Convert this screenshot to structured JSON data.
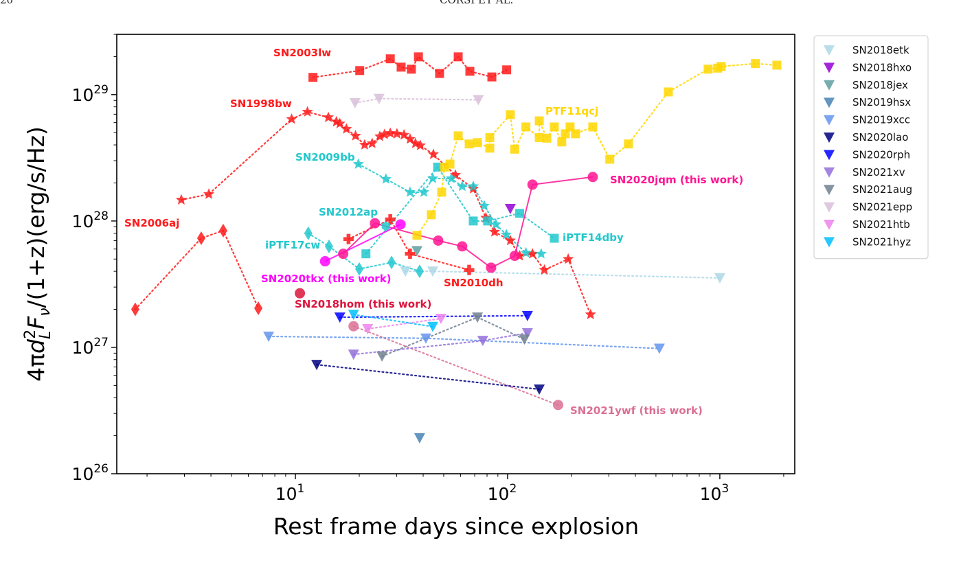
{
  "page_header": {
    "page_number": "20",
    "running_title": "CORSI ET AL."
  },
  "chart_data": {
    "type": "scatter",
    "xlabel": "Rest frame days since explosion",
    "ylabel_parts": [
      "4π",
      "d",
      "L",
      "2",
      "F",
      "ν",
      "/(1+z)(erg/s/Hz)"
    ],
    "xscale": "log",
    "yscale": "log",
    "xlim": [
      1.44,
      2255
    ],
    "ylim": [
      1e+26,
      3e+29
    ],
    "xticks": [
      {
        "base": "10",
        "exp": "1",
        "value": 10
      },
      {
        "base": "10",
        "exp": "2",
        "value": 100
      },
      {
        "base": "10",
        "exp": "3",
        "value": 1000
      }
    ],
    "yticks": [
      {
        "base": "10",
        "exp": "26",
        "value": 1e+26
      },
      {
        "base": "10",
        "exp": "27",
        "value": 1e+27
      },
      {
        "base": "10",
        "exp": "28",
        "value": 1e+28
      },
      {
        "base": "10",
        "exp": "29",
        "value": 1e+29
      }
    ],
    "grid": false,
    "legend_placement": "outside-top-right",
    "series": [
      {
        "name": "SN2006aj",
        "label": "SN2006aj",
        "color": "#ff1a1a",
        "marker": "diamond",
        "line": "dotted",
        "x": [
          1.76,
          3.6,
          4.57,
          6.69
        ],
        "y": [
          2e+27,
          7.3e+27,
          8.4e+27,
          2.04e+27
        ]
      },
      {
        "name": "SN2003lw",
        "label": "SN2003lw",
        "color": "#ff1a1a",
        "marker": "square",
        "line": "dotted",
        "x": [
          12.1,
          20.1,
          28,
          31.5,
          35.2,
          38,
          47.8,
          58.5,
          66.4,
          84.3,
          99
        ],
        "y": [
          1.37e+29,
          1.55e+29,
          1.92e+29,
          1.65e+29,
          1.59e+29,
          1.99e+29,
          1.47e+29,
          1.99e+29,
          1.53e+29,
          1.38e+29,
          1.57e+29
        ]
      },
      {
        "name": "SN1998bw",
        "label": "SN1998bw",
        "color": "#ff1a1a",
        "marker": "star",
        "line": "dotted",
        "x": [
          2.9,
          3.91,
          9.6,
          11.4,
          14.3,
          15.6,
          16.2,
          17.4,
          19.2,
          21.2,
          23.0,
          25.0,
          26.3,
          28.0,
          30.1,
          32.5,
          34.7,
          36.8,
          38.8,
          44.7,
          56.8,
          68.9,
          79.0,
          86.8,
          103,
          114,
          131,
          149,
          193,
          246
        ],
        "y": [
          1.47e+28,
          1.63e+28,
          6.4e+28,
          7.3e+28,
          6.6e+28,
          6.1e+28,
          5.9e+28,
          5.35e+28,
          4.72e+28,
          4e+28,
          4.11e+28,
          4.67e+28,
          4.84e+28,
          4.95e+28,
          4.9e+28,
          4.8e+28,
          4.45e+28,
          4.11e+28,
          3.96e+28,
          3.37e+28,
          2.31e+28,
          1.8e+28,
          1.06e+28,
          8.2e+27,
          7e+27,
          5.3e+27,
          5.5e+27,
          4.1e+27,
          5e+27,
          1.82e+27
        ]
      },
      {
        "name": "SN2010dh",
        "label": "SN2010dh",
        "color": "#ff1a1a",
        "marker": "plus",
        "line": "dotted",
        "x": [
          17.8,
          28.0,
          34.7,
          65.9
        ],
        "y": [
          7.2e+27,
          1.03e+28,
          5.5e+27,
          4.1e+27
        ]
      },
      {
        "name": "SN2009bb",
        "label": "SN2009bb",
        "color": "#22c8cc",
        "marker": "star",
        "line": "dotted",
        "x": [
          19.8,
          26.7,
          34.7,
          40.3,
          44.4,
          54.3,
          61.1,
          68.9,
          77.6,
          88.1,
          98.6,
          122,
          144
        ],
        "y": [
          2.82e+28,
          2.15e+28,
          1.69e+28,
          1.69e+28,
          2.17e+28,
          2.17e+28,
          1.88e+28,
          1.88e+28,
          1.32e+28,
          9.4e+27,
          7.8e+27,
          5.6e+27,
          5.5e+27
        ]
      },
      {
        "name": "iPTF14dby",
        "label": "iPTF14dby",
        "color": "#22c8cc",
        "marker": "square",
        "line": "dotted",
        "x": [
          21.5,
          46.8,
          68.9,
          80.5,
          114,
          166
        ],
        "y": [
          5.5e+27,
          2.67e+28,
          1e+28,
          1e+28,
          1.15e+28,
          7.3e+27
        ]
      },
      {
        "name": "SN2012ap",
        "label": "SN2012ap",
        "color": "#22c8cc",
        "marker": "hexagon",
        "line": "dotted",
        "x": [
          26.7
        ],
        "y": [
          9.1e+27
        ]
      },
      {
        "name": "iPTF17cw",
        "label": "iPTF17cw",
        "color": "#22c8cc",
        "marker": "diamond",
        "line": "dotted",
        "x": [
          11.5,
          14.4,
          20.0,
          28.4,
          38.5
        ],
        "y": [
          8e+27,
          6.3e+27,
          4.17e+27,
          4.7e+27,
          4e+27
        ]
      },
      {
        "name": "PTF11qcj",
        "label": "PTF11qcj",
        "color": "#ffd700",
        "marker": "square",
        "line": "dotted",
        "x": [
          37.4,
          43.7,
          48.9,
          50.4,
          53.5,
          58.5,
          65.9,
          72.1,
          82.4,
          82.4,
          103,
          108,
          122,
          141,
          141,
          153,
          166,
          180,
          187,
          197,
          209,
          252,
          303,
          371,
          572,
          881,
          977,
          1015,
          1472,
          1857
        ],
        "y": [
          7.7e+27,
          1.12e+28,
          1.69e+28,
          2.67e+28,
          2.82e+28,
          4.72e+28,
          4.07e+28,
          4.17e+28,
          3.77e+28,
          4.57e+28,
          6.95e+28,
          3.7e+28,
          5.55e+28,
          4.57e+28,
          6.2e+28,
          4.52e+28,
          5.55e+28,
          4.22e+28,
          4.9e+28,
          5.55e+28,
          4.9e+28,
          5.55e+28,
          3.08e+28,
          4.07e+28,
          1.05e+29,
          1.59e+29,
          1.62e+29,
          1.67e+29,
          1.76e+29,
          1.71e+29
        ]
      },
      {
        "name": "SN2020jqm",
        "label": "SN2020jqm (this work)",
        "color": "#ff1493",
        "marker": "circle",
        "line": "solid",
        "x": [
          16.8,
          23.7,
          47.1,
          61.1,
          83.6,
          108,
          131,
          252
        ],
        "y": [
          5.5e+27,
          9.6e+27,
          7e+27,
          6.3e+27,
          4.27e+27,
          5.3e+27,
          1.94e+28,
          2.23e+28
        ]
      },
      {
        "name": "SN2020tkx",
        "label": "SN2020tkx (this work)",
        "color": "#ff00ff",
        "marker": "circle",
        "line": "solid",
        "x": [
          13.8,
          31.3
        ],
        "y": [
          4.8e+27,
          9.4e+27
        ]
      },
      {
        "name": "SN2018hom",
        "label": "SN2018hom (this work)",
        "color": "#dc143c",
        "marker": "circle",
        "line": "none",
        "x": [
          10.5
        ],
        "y": [
          2.68e+27
        ]
      },
      {
        "name": "SN2021ywf",
        "label": "SN2021ywf (this work)",
        "color": "#db7093",
        "marker": "circle",
        "line": "dotted",
        "x": [
          18.8,
          173
        ],
        "y": [
          1.47e+27,
          3.5e+26
        ]
      },
      {
        "name": "SN2018etk",
        "legend": true,
        "color": "#add8e6",
        "marker": "tri",
        "line": "dotted",
        "x": [
          33.0,
          44.4,
          1000
        ],
        "y": [
          4e+27,
          4e+27,
          3.54e+27
        ]
      },
      {
        "name": "SN2018hxo",
        "legend": true,
        "color": "#9400d3",
        "marker": "tri",
        "line": "dotted",
        "x": [
          103
        ],
        "y": [
          1.25e+28
        ]
      },
      {
        "name": "SN2018jex",
        "legend": true,
        "color": "#5f9ea0",
        "marker": "tri",
        "line": "dotted",
        "x": [
          37.4
        ],
        "y": [
          5.8e+27
        ]
      },
      {
        "name": "SN2019hsx",
        "legend": true,
        "color": "#4682b4",
        "marker": "tri",
        "line": "dotted",
        "x": [
          38.5
        ],
        "y": [
          1.92e+26
        ]
      },
      {
        "name": "SN2019xcc",
        "legend": true,
        "color": "#6495ed",
        "marker": "tri",
        "line": "dotted",
        "x": [
          7.48,
          41.2,
          519
        ],
        "y": [
          1.22e+27,
          1.18e+27,
          9.8e+26
        ]
      },
      {
        "name": "SN2020lao",
        "legend": true,
        "color": "#000080",
        "marker": "tri",
        "line": "dotted",
        "x": [
          12.6,
          141
        ],
        "y": [
          7.3e+26,
          4.66e+26
        ]
      },
      {
        "name": "SN2020rph",
        "legend": true,
        "color": "#0000ff",
        "marker": "tri",
        "line": "dotted",
        "x": [
          16.2,
          124
        ],
        "y": [
          1.73e+27,
          1.78e+27
        ]
      },
      {
        "name": "SN2021xv",
        "legend": true,
        "color": "#9370db",
        "marker": "tri",
        "line": "dotted",
        "x": [
          18.8,
          76.4,
          124
        ],
        "y": [
          8.8e+26,
          1.13e+27,
          1.3e+27
        ]
      },
      {
        "name": "SN2021aug",
        "legend": true,
        "color": "#708090",
        "marker": "tri",
        "line": "dotted",
        "x": [
          25.6,
          72.1,
          120
        ],
        "y": [
          8.5e+26,
          1.73e+27,
          1.16e+27
        ]
      },
      {
        "name": "SN2021epp",
        "legend": true,
        "color": "#d8bfd8",
        "marker": "tri",
        "line": "dotted",
        "x": [
          19.1,
          24.8,
          72.8
        ],
        "y": [
          8.6e+28,
          9.3e+28,
          9.1e+28
        ]
      },
      {
        "name": "SN2021htb",
        "legend": true,
        "color": "#ee82ee",
        "marker": "tri",
        "line": "dotted",
        "x": [
          21.9,
          48.5
        ],
        "y": [
          1.4e+27,
          1.69e+27
        ]
      },
      {
        "name": "SN2021hyz",
        "legend": true,
        "color": "#00bfff",
        "marker": "tri",
        "line": "dotted",
        "x": [
          18.8,
          44.4
        ],
        "y": [
          1.82e+27,
          1.46e+27
        ]
      }
    ]
  }
}
